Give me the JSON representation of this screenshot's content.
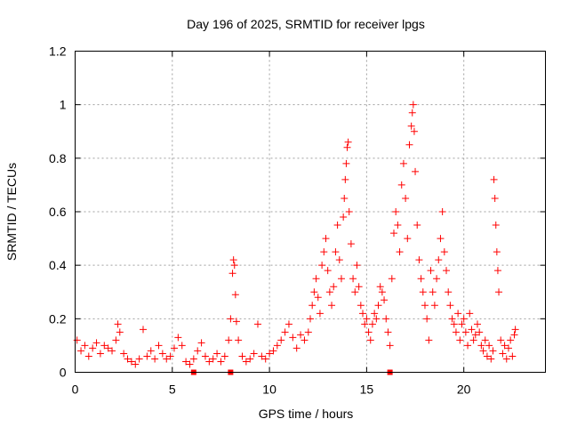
{
  "chart_data": {
    "type": "scatter",
    "title": "Day 196 of 2025, SRMTID for receiver lpgs",
    "xlabel": "GPS time / hours",
    "ylabel": "SRMTID / TECUs",
    "xlim": [
      0,
      24.2
    ],
    "ylim": [
      0,
      1.2
    ],
    "xticks": [
      0,
      5,
      10,
      15,
      20
    ],
    "xtick_labels": [
      "0",
      "5",
      "10",
      "15",
      "20"
    ],
    "yticks": [
      0,
      0.2,
      0.4,
      0.6,
      0.8,
      1.0,
      1.2
    ],
    "ytick_labels": [
      "0",
      "0.2",
      "0.4",
      "0.6",
      "0.8",
      "1",
      "1.2"
    ],
    "grid": true,
    "marker": "plus",
    "color": "#ff0000",
    "series": [
      {
        "name": "SRMTID",
        "points": [
          [
            0.1,
            0.12
          ],
          [
            0.3,
            0.08
          ],
          [
            0.5,
            0.1
          ],
          [
            0.7,
            0.06
          ],
          [
            0.9,
            0.09
          ],
          [
            1.1,
            0.11
          ],
          [
            1.3,
            0.07
          ],
          [
            1.5,
            0.1
          ],
          [
            1.7,
            0.09
          ],
          [
            1.9,
            0.08
          ],
          [
            2.1,
            0.12
          ],
          [
            2.2,
            0.18
          ],
          [
            2.3,
            0.15
          ],
          [
            2.5,
            0.07
          ],
          [
            2.7,
            0.05
          ],
          [
            2.9,
            0.04
          ],
          [
            3.1,
            0.03
          ],
          [
            3.3,
            0.05
          ],
          [
            3.5,
            0.16
          ],
          [
            3.7,
            0.06
          ],
          [
            3.9,
            0.08
          ],
          [
            4.1,
            0.05
          ],
          [
            4.3,
            0.1
          ],
          [
            4.5,
            0.07
          ],
          [
            4.7,
            0.05
          ],
          [
            4.9,
            0.06
          ],
          [
            5.1,
            0.09
          ],
          [
            5.3,
            0.13
          ],
          [
            5.5,
            0.1
          ],
          [
            5.7,
            0.04
          ],
          [
            5.9,
            0.03
          ],
          [
            6.1,
            0.05
          ],
          [
            6.3,
            0.08
          ],
          [
            6.5,
            0.11
          ],
          [
            6.7,
            0.06
          ],
          [
            6.9,
            0.04
          ],
          [
            7.1,
            0.05
          ],
          [
            7.3,
            0.07
          ],
          [
            7.5,
            0.04
          ],
          [
            7.7,
            0.06
          ],
          [
            7.9,
            0.12
          ],
          [
            8.0,
            0.2
          ],
          [
            8.1,
            0.37
          ],
          [
            8.15,
            0.42
          ],
          [
            8.2,
            0.4
          ],
          [
            8.25,
            0.29
          ],
          [
            8.3,
            0.19
          ],
          [
            8.4,
            0.12
          ],
          [
            8.6,
            0.06
          ],
          [
            8.8,
            0.04
          ],
          [
            9.0,
            0.05
          ],
          [
            9.2,
            0.07
          ],
          [
            9.4,
            0.18
          ],
          [
            9.6,
            0.06
          ],
          [
            9.8,
            0.05
          ],
          [
            10.0,
            0.07
          ],
          [
            10.2,
            0.08
          ],
          [
            10.4,
            0.1
          ],
          [
            10.6,
            0.12
          ],
          [
            10.8,
            0.15
          ],
          [
            11.0,
            0.18
          ],
          [
            11.2,
            0.13
          ],
          [
            11.4,
            0.09
          ],
          [
            11.6,
            0.14
          ],
          [
            11.8,
            0.12
          ],
          [
            12.0,
            0.15
          ],
          [
            12.1,
            0.2
          ],
          [
            12.2,
            0.25
          ],
          [
            12.3,
            0.3
          ],
          [
            12.4,
            0.35
          ],
          [
            12.5,
            0.28
          ],
          [
            12.6,
            0.22
          ],
          [
            12.7,
            0.4
          ],
          [
            12.8,
            0.45
          ],
          [
            12.9,
            0.5
          ],
          [
            13.0,
            0.38
          ],
          [
            13.1,
            0.3
          ],
          [
            13.2,
            0.25
          ],
          [
            13.3,
            0.32
          ],
          [
            13.4,
            0.45
          ],
          [
            13.5,
            0.55
          ],
          [
            13.6,
            0.42
          ],
          [
            13.7,
            0.35
          ],
          [
            13.8,
            0.58
          ],
          [
            13.85,
            0.65
          ],
          [
            13.9,
            0.72
          ],
          [
            13.95,
            0.78
          ],
          [
            14.0,
            0.84
          ],
          [
            14.05,
            0.86
          ],
          [
            14.1,
            0.6
          ],
          [
            14.2,
            0.48
          ],
          [
            14.3,
            0.35
          ],
          [
            14.4,
            0.3
          ],
          [
            14.5,
            0.4
          ],
          [
            14.6,
            0.32
          ],
          [
            14.7,
            0.25
          ],
          [
            14.8,
            0.22
          ],
          [
            14.9,
            0.18
          ],
          [
            15.0,
            0.2
          ],
          [
            15.1,
            0.15
          ],
          [
            15.2,
            0.12
          ],
          [
            15.3,
            0.18
          ],
          [
            15.4,
            0.22
          ],
          [
            15.5,
            0.2
          ],
          [
            15.6,
            0.25
          ],
          [
            15.7,
            0.32
          ],
          [
            15.8,
            0.3
          ],
          [
            15.9,
            0.27
          ],
          [
            16.0,
            0.2
          ],
          [
            16.1,
            0.15
          ],
          [
            16.2,
            0.1
          ],
          [
            16.3,
            0.35
          ],
          [
            16.4,
            0.52
          ],
          [
            16.5,
            0.6
          ],
          [
            16.6,
            0.55
          ],
          [
            16.7,
            0.45
          ],
          [
            16.8,
            0.7
          ],
          [
            16.9,
            0.78
          ],
          [
            17.0,
            0.65
          ],
          [
            17.1,
            0.5
          ],
          [
            17.2,
            0.85
          ],
          [
            17.3,
            0.92
          ],
          [
            17.35,
            0.97
          ],
          [
            17.4,
            1.0
          ],
          [
            17.45,
            0.9
          ],
          [
            17.5,
            0.75
          ],
          [
            17.6,
            0.55
          ],
          [
            17.7,
            0.42
          ],
          [
            17.8,
            0.35
          ],
          [
            17.9,
            0.3
          ],
          [
            18.0,
            0.25
          ],
          [
            18.1,
            0.2
          ],
          [
            18.2,
            0.12
          ],
          [
            18.3,
            0.38
          ],
          [
            18.4,
            0.3
          ],
          [
            18.5,
            0.25
          ],
          [
            18.6,
            0.35
          ],
          [
            18.7,
            0.42
          ],
          [
            18.8,
            0.5
          ],
          [
            18.9,
            0.6
          ],
          [
            19.0,
            0.45
          ],
          [
            19.1,
            0.38
          ],
          [
            19.2,
            0.3
          ],
          [
            19.3,
            0.25
          ],
          [
            19.4,
            0.2
          ],
          [
            19.5,
            0.18
          ],
          [
            19.6,
            0.15
          ],
          [
            19.7,
            0.22
          ],
          [
            19.8,
            0.12
          ],
          [
            19.9,
            0.18
          ],
          [
            20.0,
            0.2
          ],
          [
            20.1,
            0.15
          ],
          [
            20.2,
            0.1
          ],
          [
            20.3,
            0.22
          ],
          [
            20.4,
            0.16
          ],
          [
            20.5,
            0.12
          ],
          [
            20.6,
            0.14
          ],
          [
            20.7,
            0.18
          ],
          [
            20.8,
            0.15
          ],
          [
            20.9,
            0.1
          ],
          [
            21.0,
            0.08
          ],
          [
            21.1,
            0.12
          ],
          [
            21.2,
            0.06
          ],
          [
            21.3,
            0.1
          ],
          [
            21.4,
            0.05
          ],
          [
            21.5,
            0.08
          ],
          [
            21.55,
            0.72
          ],
          [
            21.6,
            0.65
          ],
          [
            21.65,
            0.55
          ],
          [
            21.7,
            0.45
          ],
          [
            21.75,
            0.38
          ],
          [
            21.8,
            0.3
          ],
          [
            21.9,
            0.12
          ],
          [
            22.0,
            0.07
          ],
          [
            22.1,
            0.1
          ],
          [
            22.2,
            0.05
          ],
          [
            22.3,
            0.09
          ],
          [
            22.4,
            0.12
          ],
          [
            22.5,
            0.06
          ],
          [
            22.6,
            0.14
          ],
          [
            22.65,
            0.16
          ]
        ]
      }
    ],
    "flag_markers": [
      [
        6.1,
        0.0
      ],
      [
        8.0,
        0.0
      ],
      [
        16.2,
        0.0
      ]
    ]
  }
}
